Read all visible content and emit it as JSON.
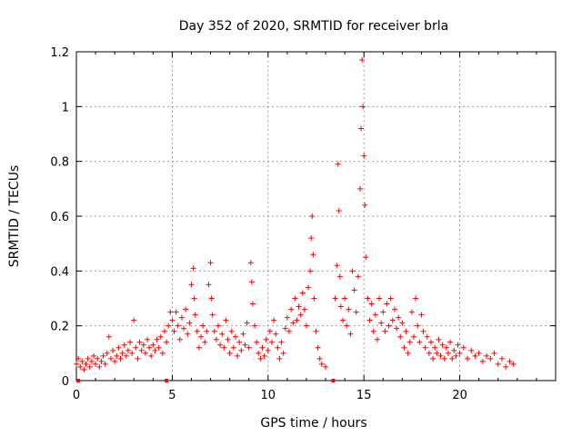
{
  "chart_data": {
    "type": "scatter",
    "title": "Day 352 of 2020, SRMTID for receiver brla",
    "xlabel": "GPS time / hours",
    "ylabel": "SRMTID / TECUs",
    "xlim": [
      0,
      25
    ],
    "ylim": [
      0,
      1.2
    ],
    "xticks": [
      0,
      5,
      10,
      15,
      20
    ],
    "xtick_labels": [
      "0",
      "5",
      "10",
      "15",
      "20"
    ],
    "yticks": [
      0,
      0.2,
      0.4,
      0.6,
      0.8,
      1.0,
      1.2
    ],
    "ytick_labels": [
      "0",
      "0.2",
      "0.4",
      "0.6",
      "0.8",
      "1",
      "1.2"
    ],
    "grid": true,
    "marker": "+",
    "color": "#ff0000",
    "baseline_markers_x": [
      0.1,
      4.7,
      13.4
    ],
    "series": [
      {
        "name": "SRMTID",
        "points": [
          [
            0.0,
            0.06
          ],
          [
            0.1,
            0.08
          ],
          [
            0.2,
            0.05
          ],
          [
            0.3,
            0.07
          ],
          [
            0.4,
            0.04
          ],
          [
            0.5,
            0.06
          ],
          [
            0.6,
            0.08
          ],
          [
            0.7,
            0.05
          ],
          [
            0.8,
            0.07
          ],
          [
            0.9,
            0.09
          ],
          [
            1.0,
            0.06
          ],
          [
            1.1,
            0.08
          ],
          [
            1.2,
            0.05
          ],
          [
            1.3,
            0.07
          ],
          [
            1.4,
            0.09
          ],
          [
            1.5,
            0.06
          ],
          [
            1.6,
            0.1
          ],
          [
            1.7,
            0.16
          ],
          [
            1.8,
            0.08
          ],
          [
            1.9,
            0.11
          ],
          [
            2.0,
            0.07
          ],
          [
            2.1,
            0.09
          ],
          [
            2.2,
            0.12
          ],
          [
            2.3,
            0.08
          ],
          [
            2.4,
            0.1
          ],
          [
            2.5,
            0.13
          ],
          [
            2.6,
            0.09
          ],
          [
            2.7,
            0.11
          ],
          [
            2.8,
            0.14
          ],
          [
            2.9,
            0.1
          ],
          [
            3.0,
            0.22
          ],
          [
            3.1,
            0.12
          ],
          [
            3.2,
            0.08
          ],
          [
            3.3,
            0.14
          ],
          [
            3.4,
            0.11
          ],
          [
            3.5,
            0.13
          ],
          [
            3.6,
            0.1
          ],
          [
            3.7,
            0.15
          ],
          [
            3.8,
            0.12
          ],
          [
            3.9,
            0.09
          ],
          [
            4.0,
            0.13
          ],
          [
            4.1,
            0.11
          ],
          [
            4.2,
            0.15
          ],
          [
            4.3,
            0.12
          ],
          [
            4.4,
            0.16
          ],
          [
            4.5,
            0.1
          ],
          [
            4.6,
            0.18
          ],
          [
            4.7,
            0.14
          ],
          [
            4.8,
            0.2
          ],
          [
            4.9,
            0.25
          ],
          [
            5.0,
            0.22
          ],
          [
            5.1,
            0.18
          ],
          [
            5.2,
            0.25
          ],
          [
            5.3,
            0.2
          ],
          [
            5.4,
            0.15
          ],
          [
            5.5,
            0.23
          ],
          [
            5.6,
            0.19
          ],
          [
            5.7,
            0.26
          ],
          [
            5.8,
            0.17
          ],
          [
            5.9,
            0.21
          ],
          [
            6.0,
            0.35
          ],
          [
            6.1,
            0.41
          ],
          [
            6.15,
            0.3
          ],
          [
            6.2,
            0.24
          ],
          [
            6.3,
            0.18
          ],
          [
            6.4,
            0.12
          ],
          [
            6.5,
            0.16
          ],
          [
            6.6,
            0.2
          ],
          [
            6.7,
            0.14
          ],
          [
            6.8,
            0.18
          ],
          [
            6.9,
            0.35
          ],
          [
            7.0,
            0.43
          ],
          [
            7.05,
            0.3
          ],
          [
            7.1,
            0.24
          ],
          [
            7.2,
            0.18
          ],
          [
            7.3,
            0.15
          ],
          [
            7.4,
            0.2
          ],
          [
            7.5,
            0.13
          ],
          [
            7.6,
            0.17
          ],
          [
            7.7,
            0.12
          ],
          [
            7.8,
            0.22
          ],
          [
            7.9,
            0.15
          ],
          [
            8.0,
            0.1
          ],
          [
            8.1,
            0.18
          ],
          [
            8.2,
            0.12
          ],
          [
            8.3,
            0.16
          ],
          [
            8.4,
            0.09
          ],
          [
            8.5,
            0.14
          ],
          [
            8.6,
            0.11
          ],
          [
            8.7,
            0.17
          ],
          [
            8.8,
            0.13
          ],
          [
            8.9,
            0.21
          ],
          [
            9.0,
            0.12
          ],
          [
            9.1,
            0.43
          ],
          [
            9.15,
            0.36
          ],
          [
            9.2,
            0.28
          ],
          [
            9.3,
            0.2
          ],
          [
            9.4,
            0.14
          ],
          [
            9.5,
            0.1
          ],
          [
            9.6,
            0.08
          ],
          [
            9.7,
            0.12
          ],
          [
            9.8,
            0.09
          ],
          [
            9.9,
            0.15
          ],
          [
            10.0,
            0.11
          ],
          [
            10.1,
            0.18
          ],
          [
            10.2,
            0.14
          ],
          [
            10.3,
            0.22
          ],
          [
            10.4,
            0.17
          ],
          [
            10.5,
            0.12
          ],
          [
            10.6,
            0.08
          ],
          [
            10.7,
            0.14
          ],
          [
            10.8,
            0.1
          ],
          [
            10.9,
            0.19
          ],
          [
            11.0,
            0.23
          ],
          [
            11.1,
            0.18
          ],
          [
            11.2,
            0.26
          ],
          [
            11.3,
            0.21
          ],
          [
            11.4,
            0.3
          ],
          [
            11.5,
            0.22
          ],
          [
            11.6,
            0.27
          ],
          [
            11.7,
            0.24
          ],
          [
            11.8,
            0.32
          ],
          [
            11.9,
            0.26
          ],
          [
            12.0,
            0.2
          ],
          [
            12.1,
            0.34
          ],
          [
            12.2,
            0.4
          ],
          [
            12.25,
            0.52
          ],
          [
            12.3,
            0.6
          ],
          [
            12.35,
            0.46
          ],
          [
            12.4,
            0.3
          ],
          [
            12.5,
            0.18
          ],
          [
            12.6,
            0.12
          ],
          [
            12.7,
            0.08
          ],
          [
            12.8,
            0.06
          ],
          [
            13.0,
            0.05
          ],
          [
            13.5,
            0.3
          ],
          [
            13.6,
            0.42
          ],
          [
            13.65,
            0.79
          ],
          [
            13.7,
            0.62
          ],
          [
            13.75,
            0.38
          ],
          [
            13.8,
            0.27
          ],
          [
            13.9,
            0.22
          ],
          [
            14.0,
            0.3
          ],
          [
            14.1,
            0.2
          ],
          [
            14.2,
            0.26
          ],
          [
            14.3,
            0.17
          ],
          [
            14.4,
            0.4
          ],
          [
            14.5,
            0.33
          ],
          [
            14.6,
            0.25
          ],
          [
            14.7,
            0.38
          ],
          [
            14.8,
            0.7
          ],
          [
            14.85,
            0.92
          ],
          [
            14.9,
            1.17
          ],
          [
            14.95,
            1.0
          ],
          [
            15.0,
            0.82
          ],
          [
            15.05,
            0.64
          ],
          [
            15.1,
            0.45
          ],
          [
            15.2,
            0.3
          ],
          [
            15.3,
            0.22
          ],
          [
            15.4,
            0.28
          ],
          [
            15.5,
            0.18
          ],
          [
            15.6,
            0.24
          ],
          [
            15.7,
            0.15
          ],
          [
            15.8,
            0.3
          ],
          [
            15.9,
            0.21
          ],
          [
            16.0,
            0.25
          ],
          [
            16.1,
            0.18
          ],
          [
            16.2,
            0.28
          ],
          [
            16.3,
            0.2
          ],
          [
            16.4,
            0.3
          ],
          [
            16.5,
            0.22
          ],
          [
            16.6,
            0.26
          ],
          [
            16.7,
            0.19
          ],
          [
            16.8,
            0.23
          ],
          [
            16.9,
            0.16
          ],
          [
            17.0,
            0.21
          ],
          [
            17.1,
            0.12
          ],
          [
            17.2,
            0.18
          ],
          [
            17.3,
            0.1
          ],
          [
            17.4,
            0.14
          ],
          [
            17.5,
            0.25
          ],
          [
            17.6,
            0.16
          ],
          [
            17.7,
            0.3
          ],
          [
            17.8,
            0.2
          ],
          [
            17.9,
            0.14
          ],
          [
            18.0,
            0.24
          ],
          [
            18.1,
            0.18
          ],
          [
            18.2,
            0.12
          ],
          [
            18.3,
            0.16
          ],
          [
            18.4,
            0.1
          ],
          [
            18.5,
            0.14
          ],
          [
            18.6,
            0.08
          ],
          [
            18.7,
            0.12
          ],
          [
            18.8,
            0.1
          ],
          [
            18.9,
            0.15
          ],
          [
            19.0,
            0.09
          ],
          [
            19.1,
            0.13
          ],
          [
            19.2,
            0.08
          ],
          [
            19.3,
            0.12
          ],
          [
            19.4,
            0.1
          ],
          [
            19.5,
            0.14
          ],
          [
            19.6,
            0.08
          ],
          [
            19.7,
            0.11
          ],
          [
            19.8,
            0.09
          ],
          [
            19.9,
            0.13
          ],
          [
            20.0,
            0.1
          ],
          [
            20.2,
            0.12
          ],
          [
            20.4,
            0.08
          ],
          [
            20.6,
            0.11
          ],
          [
            20.8,
            0.09
          ],
          [
            21.0,
            0.1
          ],
          [
            21.2,
            0.07
          ],
          [
            21.4,
            0.09
          ],
          [
            21.6,
            0.08
          ],
          [
            21.8,
            0.1
          ],
          [
            22.0,
            0.06
          ],
          [
            22.2,
            0.08
          ],
          [
            22.4,
            0.05
          ],
          [
            22.6,
            0.07
          ],
          [
            22.8,
            0.06
          ]
        ]
      }
    ]
  }
}
